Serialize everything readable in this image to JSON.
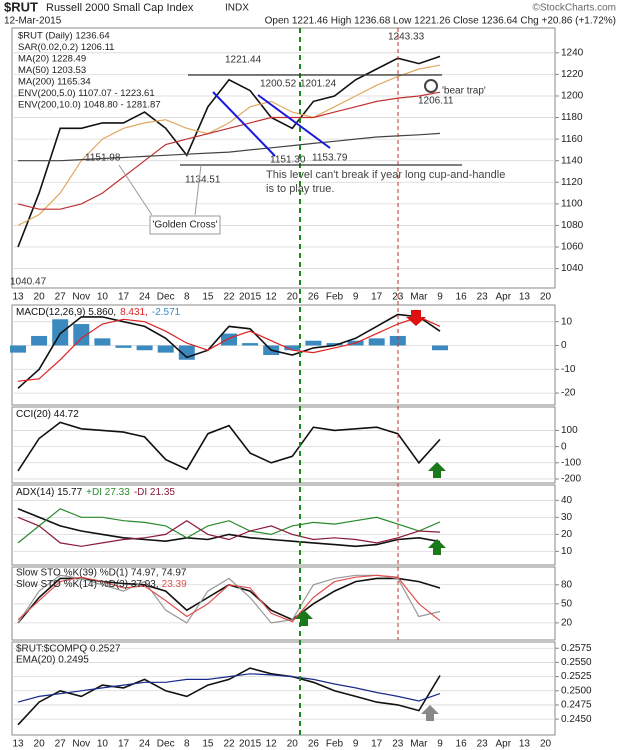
{
  "header": {
    "symbol": "$RUT",
    "name": "Russell 2000 Small Cap Index",
    "exchange": "INDX",
    "credit": "©StockCharts.com",
    "date": "12-Mar-2015",
    "quote": "Open 1221.46  High 1236.68  Low 1221.26  Close 1236.64  Chg +20.86 (+1.72%)"
  },
  "chart_data": [
    {
      "type": "line",
      "categories": [
        "13",
        "20",
        "27",
        "Nov",
        "10",
        "17",
        "24",
        "Dec",
        "8",
        "15",
        "22",
        "2015",
        "12",
        "20",
        "26",
        "Feb",
        "9",
        "17",
        "23",
        "Mar",
        "9",
        "16",
        "23",
        "Apr",
        "13",
        "20"
      ],
      "series": [
        {
          "name": "$RUT (Daily) 1236.64",
          "color": "#111111",
          "values": [
            1060,
            1110,
            1170,
            1170,
            1175,
            1175,
            1185,
            1170,
            1145,
            1190,
            1215,
            1205,
            1180,
            1170,
            1195,
            1200,
            1215,
            1225,
            1235,
            1230,
            1236.64,
            null,
            null,
            null,
            null,
            null
          ]
        },
        {
          "name": "MA(20) 1228.49",
          "color": "#e0a860",
          "values": [
            1080,
            1090,
            1110,
            1140,
            1160,
            1170,
            1175,
            1178,
            1170,
            1165,
            1175,
            1190,
            1195,
            1185,
            1180,
            1190,
            1200,
            1210,
            1218,
            1225,
            1228.49,
            null,
            null,
            null,
            null,
            null
          ]
        },
        {
          "name": "MA(50) 1203.53",
          "color": "#c03030",
          "values": [
            1100,
            1095,
            1095,
            1100,
            1110,
            1125,
            1140,
            1155,
            1160,
            1165,
            1170,
            1175,
            1180,
            1180,
            1180,
            1185,
            1190,
            1195,
            1198,
            1200,
            1203.53,
            null,
            null,
            null,
            null,
            null
          ]
        },
        {
          "name": "MA(200) 1165.34",
          "color": "#444444",
          "values": [
            1140,
            1140,
            1140,
            1141,
            1142,
            1143,
            1144,
            1145,
            1146,
            1147,
            1148,
            1150,
            1152,
            1154,
            1156,
            1158,
            1160,
            1162,
            1163,
            1164,
            1165.34,
            null,
            null,
            null,
            null,
            null
          ]
        }
      ],
      "indicators": [
        "SAR(0.02,0.2) 1206.11",
        "ENV(200,5.0) 1107.07 - 1223.61",
        "ENV(200,10.0) 1048.80 - 1281.87"
      ],
      "annotations": [
        "1221.44",
        "1200.52",
        "1201.24",
        "1243.33",
        "1151.98",
        "1134.51",
        "1151.30",
        "1153.79",
        "1206.11",
        "1040.47",
        "'bear trap'",
        "This level can't break if year long cup-and-handle is to play true.",
        "'Golden Cross'"
      ],
      "ylim": [
        1022,
        1263
      ],
      "yticks": [
        1040,
        1060,
        1080,
        1100,
        1120,
        1140,
        1160,
        1180,
        1200,
        1220,
        1240
      ],
      "grid": true
    },
    {
      "type": "line",
      "series": [
        {
          "name": "MACD(12,26,9) 5.860,",
          "color": "#111111",
          "values": [
            -18,
            -10,
            5,
            12,
            12,
            10,
            8,
            3,
            -5,
            -2,
            8,
            7,
            -2,
            -4,
            -1,
            0,
            3,
            8,
            13,
            12,
            6,
            null,
            null,
            null,
            null,
            null
          ]
        },
        {
          "name": "8.431,",
          "color": "#e02020",
          "values": [
            -15,
            -14,
            -6,
            3,
            9,
            11,
            10,
            6,
            1,
            -2,
            3,
            6,
            2,
            -2,
            -3,
            -1,
            1,
            5,
            9,
            12,
            8,
            null,
            null,
            null,
            null,
            null
          ]
        },
        {
          "name": "-2.571",
          "color": "#3a8ac0",
          "type": "bar",
          "values": [
            -3,
            4,
            11,
            9,
            3,
            -1,
            -2,
            -3,
            -6,
            0,
            5,
            1,
            -4,
            -2,
            2,
            1,
            2,
            3,
            4,
            0,
            -2,
            null,
            null,
            null,
            null,
            null
          ]
        }
      ],
      "ylim": [
        -25,
        17
      ],
      "yticks": [
        -20,
        -10,
        0,
        10
      ],
      "grid": true
    },
    {
      "type": "line",
      "series": [
        {
          "name": "CCI(20) 44.72",
          "color": "#111111",
          "values": [
            -150,
            50,
            150,
            110,
            100,
            90,
            60,
            -80,
            -140,
            80,
            130,
            -40,
            -100,
            -60,
            120,
            100,
            110,
            120,
            80,
            -100,
            44.72,
            null,
            null,
            null,
            null,
            null
          ]
        }
      ],
      "ylim": [
        -225,
        245
      ],
      "yticks": [
        -200,
        -100,
        0,
        100
      ],
      "grid": true
    },
    {
      "type": "line",
      "series": [
        {
          "name": "ADX(14) 15.77",
          "color": "#111111",
          "values": [
            35,
            30,
            25,
            22,
            20,
            18,
            17,
            16,
            18,
            17,
            20,
            18,
            17,
            16,
            15,
            14,
            13,
            14,
            17,
            18,
            15.77,
            null,
            null,
            null,
            null,
            null
          ]
        },
        {
          "name": "+DI 27.33",
          "color": "#2a8a2a",
          "values": [
            15,
            25,
            35,
            30,
            30,
            28,
            27,
            25,
            18,
            25,
            28,
            22,
            20,
            25,
            27,
            26,
            28,
            30,
            26,
            22,
            27.33,
            null,
            null,
            null,
            null,
            null
          ]
        },
        {
          "name": "-DI 21.35",
          "color": "#8b1a3a",
          "values": [
            30,
            25,
            15,
            13,
            15,
            17,
            18,
            20,
            28,
            20,
            17,
            22,
            25,
            20,
            17,
            18,
            17,
            15,
            18,
            22,
            21.35,
            null,
            null,
            null,
            null,
            null
          ]
        }
      ],
      "ylim": [
        2,
        49
      ],
      "yticks": [
        10,
        20,
        30,
        40
      ],
      "grid": true
    },
    {
      "type": "line",
      "series": [
        {
          "name": "Slow STO %K(39) %D(1) 74.97, 74.97",
          "color": "#111111",
          "values": [
            20,
            60,
            90,
            90,
            85,
            82,
            80,
            70,
            40,
            60,
            80,
            70,
            40,
            25,
            50,
            70,
            85,
            90,
            90,
            85,
            74.97,
            null,
            null,
            null,
            null,
            null
          ]
        },
        {
          "name": "Slow STO %K(14) %D(3) 37.93,",
          "color": "#999999",
          "values": [
            20,
            70,
            95,
            90,
            80,
            70,
            85,
            40,
            20,
            70,
            90,
            60,
            20,
            25,
            80,
            90,
            95,
            95,
            90,
            30,
            37.93,
            null,
            null,
            null,
            null,
            null
          ]
        },
        {
          "name": "23.39",
          "color": "#e05050",
          "values": [
            25,
            55,
            85,
            92,
            85,
            75,
            78,
            55,
            30,
            50,
            80,
            75,
            35,
            22,
            60,
            85,
            92,
            95,
            92,
            50,
            23.39,
            null,
            null,
            null,
            null,
            null
          ]
        }
      ],
      "ylim": [
        -7,
        108
      ],
      "yticks": [
        20,
        50,
        80
      ],
      "grid": true
    },
    {
      "type": "line",
      "series": [
        {
          "name": "$RUT:$COMPQ 0.2527",
          "color": "#111111",
          "values": [
            0.244,
            0.248,
            0.25,
            0.249,
            0.251,
            0.2505,
            0.252,
            0.25,
            0.249,
            0.251,
            0.252,
            0.254,
            0.253,
            0.2525,
            0.2515,
            0.25,
            0.249,
            0.248,
            0.2475,
            0.2465,
            0.2527,
            null,
            null,
            null,
            null,
            null
          ]
        },
        {
          "name": "EMA(20) 0.2495",
          "color": "#1a2a8a",
          "values": [
            0.248,
            0.249,
            0.2495,
            0.25,
            0.2505,
            0.251,
            0.2515,
            0.2515,
            0.252,
            0.252,
            0.2525,
            0.253,
            0.2528,
            0.2525,
            0.252,
            0.2512,
            0.2505,
            0.2497,
            0.249,
            0.2482,
            0.2495,
            null,
            null,
            null,
            null,
            null
          ]
        }
      ],
      "ylim": [
        0.2422,
        0.2586
      ],
      "yticks": [
        {
          "value": 0.245,
          "label": "0.2450"
        },
        0.2475,
        {
          "value": 0.25,
          "label": "0.2500"
        },
        0.2525,
        {
          "value": 0.255,
          "label": "0.2550"
        },
        0.2575
      ],
      "grid": true
    }
  ]
}
